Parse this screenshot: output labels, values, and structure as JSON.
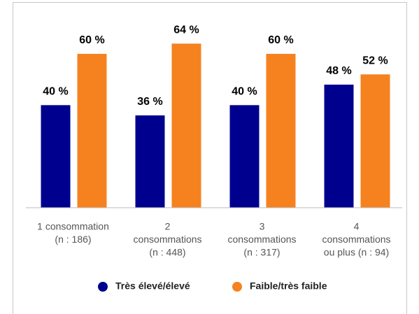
{
  "chart_data": {
    "type": "bar",
    "categories": [
      [
        "1 consommation",
        "(n : 186)"
      ],
      [
        "2",
        "consommations",
        "(n : 448)"
      ],
      [
        "3",
        "consommations",
        "(n : 317)"
      ],
      [
        "4",
        "consommations",
        "ou plus (n : 94)"
      ]
    ],
    "series": [
      {
        "name": "Très élevé/élevé",
        "color": "#00008f",
        "values": [
          40,
          36,
          40,
          48
        ],
        "value_labels": [
          "40 %",
          "36 %",
          "40 %",
          "48 %"
        ]
      },
      {
        "name": "Faible/très faible",
        "color": "#f5821f",
        "values": [
          60,
          64,
          60,
          52
        ],
        "value_labels": [
          "60 %",
          "64 %",
          "60 %",
          "52 %"
        ]
      }
    ],
    "ylim": [
      0,
      80
    ]
  }
}
